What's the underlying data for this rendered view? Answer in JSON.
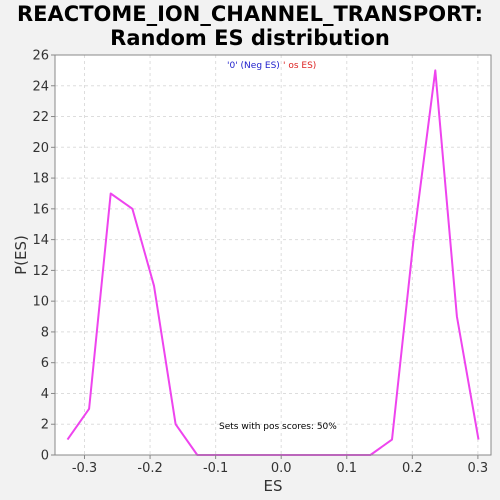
{
  "title_line1": "REACTOME_ION_CHANNEL_TRANSPORT:",
  "title_line2": "Random ES distribution",
  "chart_data": {
    "type": "line",
    "xlabel": "ES",
    "ylabel": "P(ES)",
    "xlim": [
      -0.345,
      0.32
    ],
    "ylim": [
      0,
      26
    ],
    "x_ticks": [
      -0.3,
      -0.2,
      -0.1,
      0.0,
      0.1,
      0.2,
      0.3
    ],
    "x_tick_labels": [
      "-0.3",
      "-0.2",
      "-0.1",
      "0.0",
      "0.1",
      "0.2",
      "0.3"
    ],
    "y_ticks": [
      0,
      2,
      4,
      6,
      8,
      10,
      12,
      14,
      16,
      18,
      20,
      22,
      24,
      26
    ],
    "y_tick_labels": [
      "0",
      "2",
      "4",
      "6",
      "8",
      "10",
      "12",
      "14",
      "16",
      "18",
      "20",
      "22",
      "24",
      "26"
    ],
    "grid": true,
    "series": [
      {
        "color": "#ee44ee",
        "x": [
          -0.326,
          -0.293,
          -0.26,
          -0.227,
          -0.194,
          -0.161,
          -0.128,
          -0.095,
          -0.062,
          -0.029,
          0.004,
          0.037,
          0.07,
          0.103,
          0.136,
          0.169,
          0.202,
          0.235,
          0.268,
          0.301
        ],
        "y": [
          1,
          3,
          17,
          16,
          11,
          2,
          0,
          0,
          0,
          0,
          0,
          0,
          0,
          0,
          0,
          1,
          14,
          25,
          9,
          1
        ]
      }
    ],
    "legend": {
      "neg_label": "'0' (Neg ES)",
      "neg_color": "#2222cc",
      "pos_label": "' os ES)",
      "pos_color": "#dd2222",
      "placement": "top-center"
    },
    "annotation": "Sets with pos scores: 50%"
  }
}
